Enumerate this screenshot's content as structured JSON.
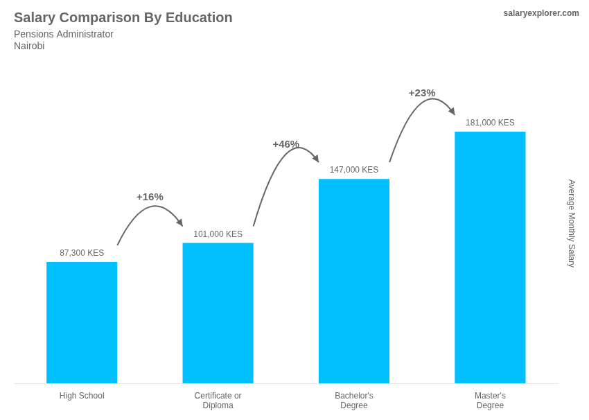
{
  "chart_data": {
    "type": "bar",
    "title": "Salary Comparison By Education",
    "subtitle": [
      "Pensions Administrator",
      "Nairobi"
    ],
    "ylabel": "Average Monthly Salary",
    "watermark": "salaryexplorer.com",
    "categories": [
      "High School",
      "Certificate or\nDiploma",
      "Bachelor's\nDegree",
      "Master's\nDegree"
    ],
    "values": [
      87300,
      101000,
      147000,
      181000
    ],
    "value_labels": [
      "87,300 KES",
      "101,000 KES",
      "147,000 KES",
      "181,000 KES"
    ],
    "data_labels": true,
    "annotations": [
      "+16%",
      "+46%",
      "+23%"
    ],
    "color": "#00BFFF",
    "ylim": [
      0,
      230000
    ],
    "grid": false,
    "tick_labels": "x"
  }
}
